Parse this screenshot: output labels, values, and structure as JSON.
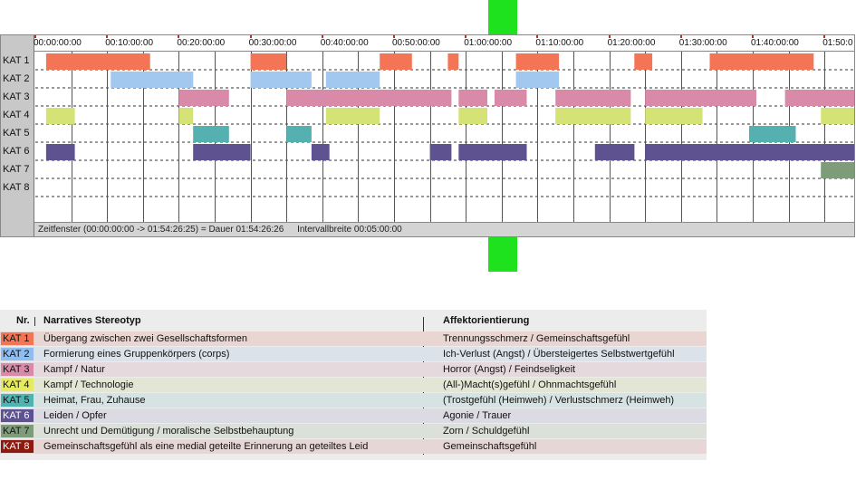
{
  "timeline": {
    "ruler_ticks": [
      "00:00:00:00",
      "00:10:00:00",
      "00:20:00:00",
      "00:30:00:00",
      "00:40:00:00",
      "00:50:00:00",
      "01:00:00:00",
      "01:10:00:00",
      "01:20:00:00",
      "01:30:00:00",
      "01:40:00:00",
      "01:50:0"
    ],
    "rows": [
      "KAT 1",
      "KAT 2",
      "KAT 3",
      "KAT 4",
      "KAT 5",
      "KAT 6",
      "KAT 7",
      "KAT 8"
    ],
    "status": {
      "window": "Zeitfenster (00:00:00:00 -> 01:54:26:25) = Dauer 01:54:26:26",
      "interval": "Intervallbreite 00:05:00:00"
    }
  },
  "chart_data": {
    "type": "timeline",
    "x_unit": "minutes",
    "x_range": [
      0,
      114.45
    ],
    "interval_minutes": 5,
    "categories": [
      "KAT 1",
      "KAT 2",
      "KAT 3",
      "KAT 4",
      "KAT 5",
      "KAT 6",
      "KAT 7",
      "KAT 8"
    ],
    "colors": {
      "KAT 1": "#f47555",
      "KAT 2": "#a3c8f0",
      "KAT 3": "#d98aa9",
      "KAT 4": "#d5e275",
      "KAT 5": "#55b1b0",
      "KAT 6": "#5e5390",
      "KAT 7": "#7f9c7a",
      "KAT 8": "#8b1a10"
    },
    "segments": {
      "KAT 1": [
        [
          1.5,
          16.0
        ],
        [
          30.0,
          35.0
        ],
        [
          48.0,
          52.5
        ],
        [
          57.5,
          59.0
        ],
        [
          67.0,
          73.0
        ],
        [
          83.5,
          86.0
        ],
        [
          94.0,
          108.5
        ]
      ],
      "KAT 2": [
        [
          10.5,
          22.0
        ],
        [
          30.0,
          38.5
        ],
        [
          40.5,
          48.0
        ],
        [
          67.0,
          73.0
        ]
      ],
      "KAT 3": [
        [
          20.0,
          27.0
        ],
        [
          35.0,
          58.0
        ],
        [
          59.0,
          63.0
        ],
        [
          64.0,
          68.5
        ],
        [
          72.5,
          83.0
        ],
        [
          85.0,
          100.5
        ],
        [
          104.5,
          114.5
        ]
      ],
      "KAT 4": [
        [
          1.5,
          5.5
        ],
        [
          20.0,
          22.0
        ],
        [
          40.5,
          48.0
        ],
        [
          59.0,
          63.0
        ],
        [
          72.5,
          83.0
        ],
        [
          85.0,
          93.0
        ],
        [
          109.5,
          114.5
        ]
      ],
      "KAT 5": [
        [
          22.0,
          27.0
        ],
        [
          35.0,
          38.5
        ],
        [
          99.5,
          106.0
        ]
      ],
      "KAT 6": [
        [
          1.5,
          5.5
        ],
        [
          22.0,
          30.0
        ],
        [
          38.5,
          41.0
        ],
        [
          55.0,
          58.0
        ],
        [
          59.0,
          68.5
        ],
        [
          78.0,
          83.5
        ],
        [
          85.0,
          114.5
        ]
      ],
      "KAT 7": [
        [
          109.5,
          114.5
        ]
      ],
      "KAT 8": []
    }
  },
  "legend": {
    "header": {
      "nr": "Nr.",
      "stereotyp": "Narratives Stereotyp",
      "affekt": "Affektorientierung"
    },
    "rows": [
      {
        "kat": "KAT 1",
        "stereotyp": "Übergang zwischen zwei Gesellschaftsformen",
        "affekt": "Trennungsschmerz / Gemeinschaftsgefühl",
        "color": "#f47555",
        "bg": "#e9d6d3"
      },
      {
        "kat": "KAT 2",
        "stereotyp": "Formierung eines Gruppenkörpers (corps)",
        "affekt": "Ich-Verlust (Angst) / Übersteigertes Selbstwertgefühl",
        "color": "#8fbdf0",
        "bg": "#dbe2ea"
      },
      {
        "kat": "KAT 3",
        "stereotyp": "Kampf / Natur",
        "affekt": "Horror (Angst) / Feindseligkeit",
        "color": "#d98aa9",
        "bg": "#e6d9de"
      },
      {
        "kat": "KAT 4",
        "stereotyp": "Kampf / Technologie",
        "affekt": "(All-)Macht(s)gefühl / Ohnmachtsgefühl",
        "color": "#e5ea5e",
        "bg": "#e4e6d5"
      },
      {
        "kat": "KAT 5",
        "stereotyp": "Heimat, Frau, Zuhause",
        "affekt": "(Trostgefühl (Heimweh) / Verlustschmerz (Heimweh)",
        "color": "#4fb3b2",
        "bg": "#d6e3e2"
      },
      {
        "kat": "KAT 6",
        "stereotyp": "Leiden / Opfer",
        "affekt": "Agonie / Trauer",
        "color": "#5e5390",
        "bg": "#dcdae2"
      },
      {
        "kat": "KAT 7",
        "stereotyp": "Unrecht und Demütigung / moralische Selbstbehauptung",
        "affekt": "Zorn / Schuldgefühl",
        "color": "#7f9c7a",
        "bg": "#dbe0d9"
      },
      {
        "kat": "KAT 8",
        "stereotyp": "Gemeinschaftsgefühl als eine medial geteilte Erinnerung an geteiltes Leid",
        "affekt": "Gemeinschaftsgefühl",
        "color": "#8b1a10",
        "bg": "#e6d6d6"
      }
    ]
  }
}
